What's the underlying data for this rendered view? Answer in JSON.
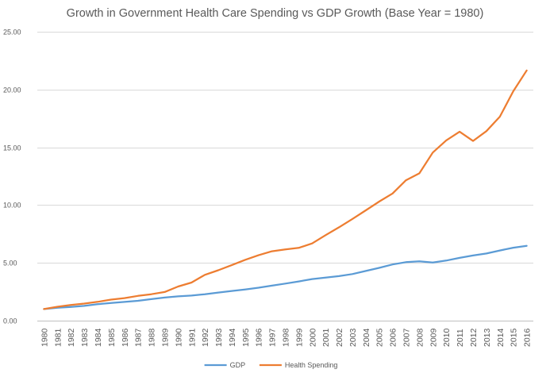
{
  "chart_data": {
    "type": "line",
    "title": "Growth in Government Health Care Spending vs GDP Growth (Base Year = 1980)",
    "xlabel": "",
    "ylabel": "",
    "ylim": [
      0,
      25
    ],
    "yticks": [
      "0.00",
      "5.00",
      "10.00",
      "15.00",
      "20.00",
      "25.00"
    ],
    "grid": true,
    "legend_position": "bottom",
    "categories": [
      "1980",
      "1981",
      "1982",
      "1983",
      "1984",
      "1985",
      "1986",
      "1987",
      "1988",
      "1989",
      "1990",
      "1991",
      "1992",
      "1993",
      "1994",
      "1995",
      "1996",
      "1997",
      "1998",
      "1999",
      "2000",
      "2001",
      "2002",
      "2003",
      "2004",
      "2005",
      "2006",
      "2007",
      "2008",
      "2009",
      "2010",
      "2011",
      "2012",
      "2013",
      "2014",
      "2015",
      "2016"
    ],
    "series": [
      {
        "name": "GDP",
        "color": "#5b9bd5",
        "values": [
          1.0,
          1.12,
          1.19,
          1.28,
          1.42,
          1.53,
          1.62,
          1.72,
          1.86,
          2.0,
          2.1,
          2.17,
          2.29,
          2.43,
          2.57,
          2.7,
          2.85,
          3.03,
          3.21,
          3.39,
          3.6,
          3.73,
          3.85,
          4.03,
          4.3,
          4.57,
          4.86,
          5.06,
          5.14,
          5.03,
          5.2,
          5.43,
          5.64,
          5.81,
          6.07,
          6.31,
          6.48
        ]
      },
      {
        "name": "Health Spending",
        "color": "#ed7d31",
        "values": [
          1.0,
          1.2,
          1.35,
          1.48,
          1.63,
          1.82,
          1.95,
          2.14,
          2.29,
          2.48,
          2.95,
          3.3,
          3.96,
          4.36,
          4.8,
          5.26,
          5.66,
          6.0,
          6.17,
          6.3,
          6.68,
          7.4,
          8.08,
          8.8,
          9.55,
          10.3,
          11.0,
          12.15,
          12.75,
          14.55,
          15.6,
          16.35,
          15.55,
          16.4,
          17.65,
          19.85,
          21.65
        ]
      }
    ]
  }
}
